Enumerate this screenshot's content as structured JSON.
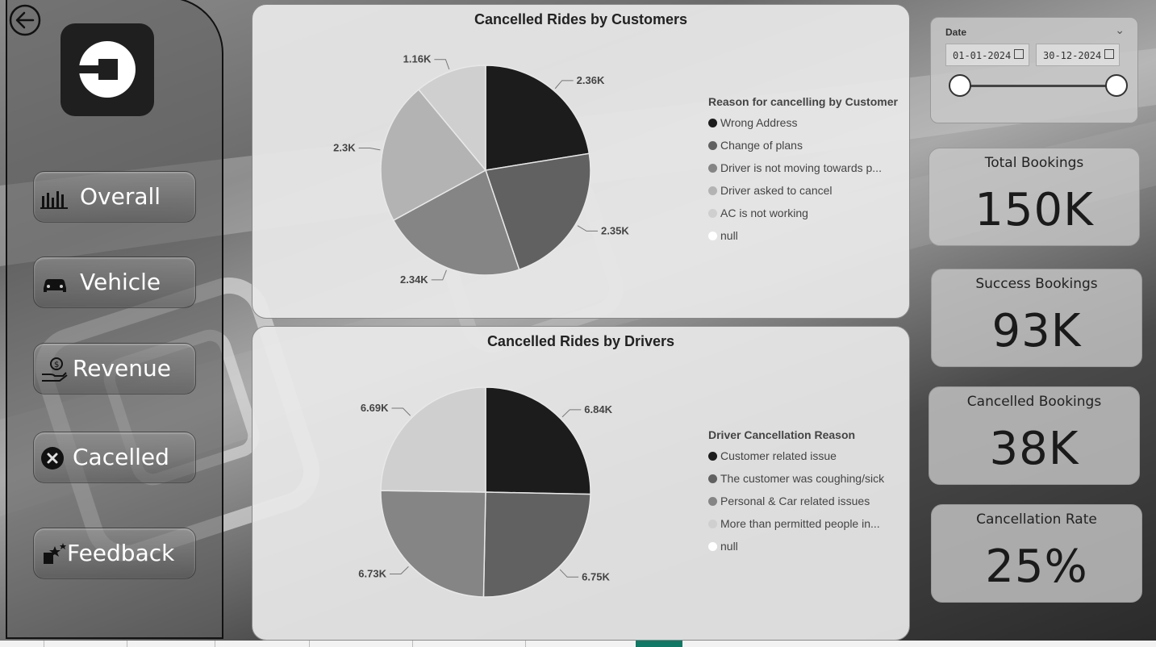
{
  "colors": {
    "accent_tab": "#117865",
    "slice_1": "#1c1c1c",
    "slice_2": "#616161",
    "slice_3": "#858585",
    "slice_4": "#b3b3b3",
    "slice_5": "#cfcfcf",
    "slice_6": "#ffffff"
  },
  "sidebar": {
    "back_icon": "back-arrow-icon",
    "logo": "uber-logo",
    "nav": [
      {
        "label": "Overall",
        "icon": "bar-chart-icon"
      },
      {
        "label": "Vehicle",
        "icon": "car-icon"
      },
      {
        "label": "Revenue",
        "icon": "money-hand-icon"
      },
      {
        "label": "Cacelled",
        "icon": "cancel-circle-icon"
      },
      {
        "label": "Feedback",
        "icon": "stars-feedback-icon"
      }
    ]
  },
  "customer_panel": {
    "title": "Cancelled Rides by Customers",
    "legend_title": "Reason for cancelling by Customer",
    "legend": [
      "Wrong Address",
      "Change of plans",
      "Driver is not moving towards p...",
      "Driver asked to cancel",
      "AC is not working",
      "null"
    ]
  },
  "driver_panel": {
    "title": "Cancelled Rides by Drivers",
    "legend_title": "Driver Cancellation Reason",
    "legend": [
      "Customer related issue",
      "The customer was coughing/sick",
      "Personal & Car related issues",
      "More than permitted people in...",
      "null"
    ]
  },
  "chart_data": [
    {
      "type": "pie",
      "title": "Cancelled Rides by Customers",
      "legend_title": "Reason for cancelling by Customer",
      "categories": [
        "Wrong Address",
        "Change of plans",
        "Driver is not moving towards p...",
        "Driver asked to cancel",
        "AC is not working"
      ],
      "values": [
        2.36,
        2.35,
        2.34,
        2.3,
        1.16
      ],
      "labels": [
        "2.36K",
        "2.35K",
        "2.34K",
        "2.3K",
        "1.16K"
      ],
      "unit": "K",
      "legend_placement": "right"
    },
    {
      "type": "pie",
      "title": "Cancelled Rides by Drivers",
      "legend_title": "Driver Cancellation Reason",
      "categories": [
        "Customer related issue",
        "The customer was coughing/sick",
        "Personal & Car related issues",
        "More than permitted people in..."
      ],
      "values": [
        6.84,
        6.75,
        6.73,
        6.69
      ],
      "labels": [
        "6.84K",
        "6.75K",
        "6.73K",
        "6.69K"
      ],
      "unit": "K",
      "legend_placement": "right"
    }
  ],
  "date_slicer": {
    "title": "Date",
    "start": "01-01-2024",
    "end": "30-12-2024",
    "range_start": 0,
    "range_end": 1
  },
  "kpis": [
    {
      "title": "Total Bookings",
      "value": "150K"
    },
    {
      "title": "Success Bookings",
      "value": "93K"
    },
    {
      "title": "Cancelled Bookings",
      "value": "38K"
    },
    {
      "title": "Cancellation Rate",
      "value": "25%"
    }
  ]
}
